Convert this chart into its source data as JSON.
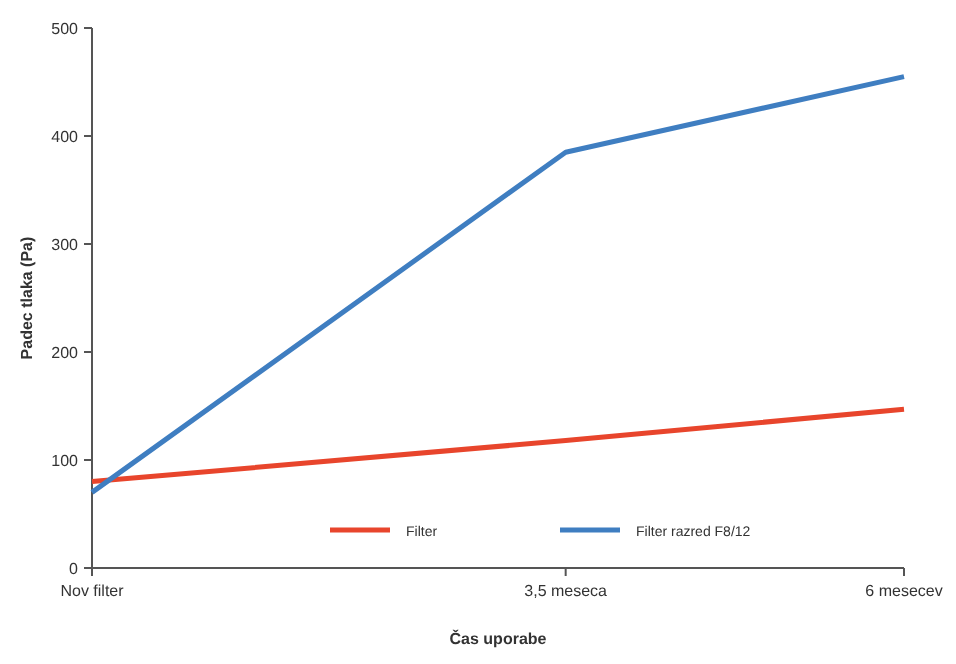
{
  "chart_data": {
    "type": "line",
    "xlabel": "Čas uporabe",
    "ylabel": "Padec tlaka (Pa)",
    "x": [
      0,
      3.5,
      6
    ],
    "xlim": [
      0,
      6
    ],
    "xticks": [
      {
        "value": 0,
        "label": "Nov filter"
      },
      {
        "value": 3.5,
        "label": "3,5 meseca"
      },
      {
        "value": 6,
        "label": "6 mesecev"
      }
    ],
    "ylim": [
      0,
      500
    ],
    "yticks": [
      0,
      100,
      200,
      300,
      400,
      500
    ],
    "grid": false,
    "legend": "bottom",
    "marker": "none",
    "line_style": "solid",
    "series": [
      {
        "name": "Filter",
        "color": "#e8452c",
        "values": [
          80,
          118,
          147
        ]
      },
      {
        "name": "Filter razred F8/12",
        "color": "#3f7ec1",
        "values": [
          70,
          385,
          455
        ]
      }
    ]
  }
}
